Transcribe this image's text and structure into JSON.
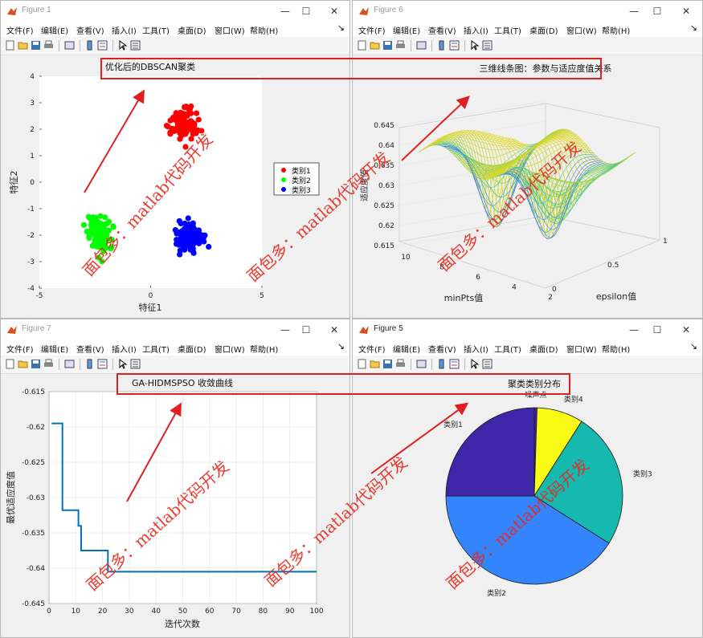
{
  "menu": [
    "文件(F)",
    "编辑(E)",
    "查看(V)",
    "插入(I)",
    "工具(T)",
    "桌面(D)",
    "窗口(W)",
    "帮助(H)"
  ],
  "controls": {
    "minimize": "—",
    "maximize": "☐",
    "close": "✕",
    "menu_arrow": "↘"
  },
  "watermark": "面包多：matlab代码开发",
  "windows": {
    "fig1": {
      "title": "Figure 1",
      "chart_data": {
        "type": "scatter",
        "title": "优化后的DBSCAN聚类",
        "xlabel": "特征1",
        "ylabel": "特征2",
        "xlim": [
          -5,
          5
        ],
        "ylim": [
          -4,
          4
        ],
        "xticks": [
          "-5",
          "0",
          "5"
        ],
        "yticks": [
          "4",
          "3",
          "2",
          "1",
          "0",
          "-1",
          "-2",
          "-3",
          "-4"
        ],
        "legend": [
          "类别1",
          "类别2",
          "类别3"
        ],
        "legend_position": "right",
        "colors": [
          "#ff0000",
          "#00ff00",
          "#0000ff"
        ],
        "series": [
          {
            "name": "类别1",
            "center": [
              1.5,
              2.2
            ],
            "spread": [
              1.0,
              0.7
            ],
            "count": 90
          },
          {
            "name": "类别2",
            "center": [
              -2.3,
              -2.0
            ],
            "spread": [
              0.8,
              0.7
            ],
            "count": 150
          },
          {
            "name": "类别3",
            "center": [
              1.7,
              -2.1
            ],
            "spread": [
              1.0,
              0.6
            ],
            "count": 100
          }
        ]
      }
    },
    "fig6": {
      "title": "Figure 6",
      "chart_data": {
        "type": "surface-lines",
        "title": "三维线条图：参数与适应度值关系",
        "xlabel": "epsilon值",
        "ylabel": "minPts值",
        "zlabel": "适应度值",
        "zticks": [
          "0.645",
          "0.64",
          "0.635",
          "0.63",
          "0.625",
          "0.62",
          "0.615"
        ],
        "xticks": [
          "0",
          "0.5",
          "1"
        ],
        "yticks": [
          "10",
          "8",
          "6",
          "4",
          "2"
        ],
        "zlim": [
          0.615,
          0.645
        ]
      }
    },
    "fig7": {
      "title": "Figure 7",
      "chart_data": {
        "type": "line",
        "title": "GA-HIDMSPSO 收敛曲线",
        "xlabel": "迭代次数",
        "ylabel": "最优适应度值",
        "xlim": [
          0,
          100
        ],
        "ylim": [
          -0.645,
          -0.615
        ],
        "xticks": [
          "0",
          "10",
          "20",
          "30",
          "40",
          "50",
          "60",
          "70",
          "80",
          "90",
          "100"
        ],
        "yticks": [
          "-0.615",
          "-0.62",
          "-0.625",
          "-0.63",
          "-0.635",
          "-0.64",
          "-0.645"
        ],
        "grid": true,
        "color": "#0072bd",
        "x": [
          1,
          4,
          5,
          10,
          11,
          12,
          13,
          21,
          22,
          100
        ],
        "y": [
          -0.6195,
          -0.6195,
          -0.6318,
          -0.6318,
          -0.634,
          -0.6375,
          -0.6375,
          -0.6375,
          -0.6405,
          -0.6405
        ]
      }
    },
    "fig5": {
      "title": "Figure 5",
      "chart_data": {
        "type": "pie",
        "title": "聚类类别分布",
        "labels": [
          "噪声点",
          "类别4",
          "类别3",
          "类别2",
          "类别1"
        ],
        "values": [
          0.5,
          8.5,
          25,
          41,
          25
        ],
        "colors": [
          "#3e26a8",
          "#f9fb15",
          "#15b9b0",
          "#3485fd",
          "#3e26a8"
        ]
      }
    }
  }
}
